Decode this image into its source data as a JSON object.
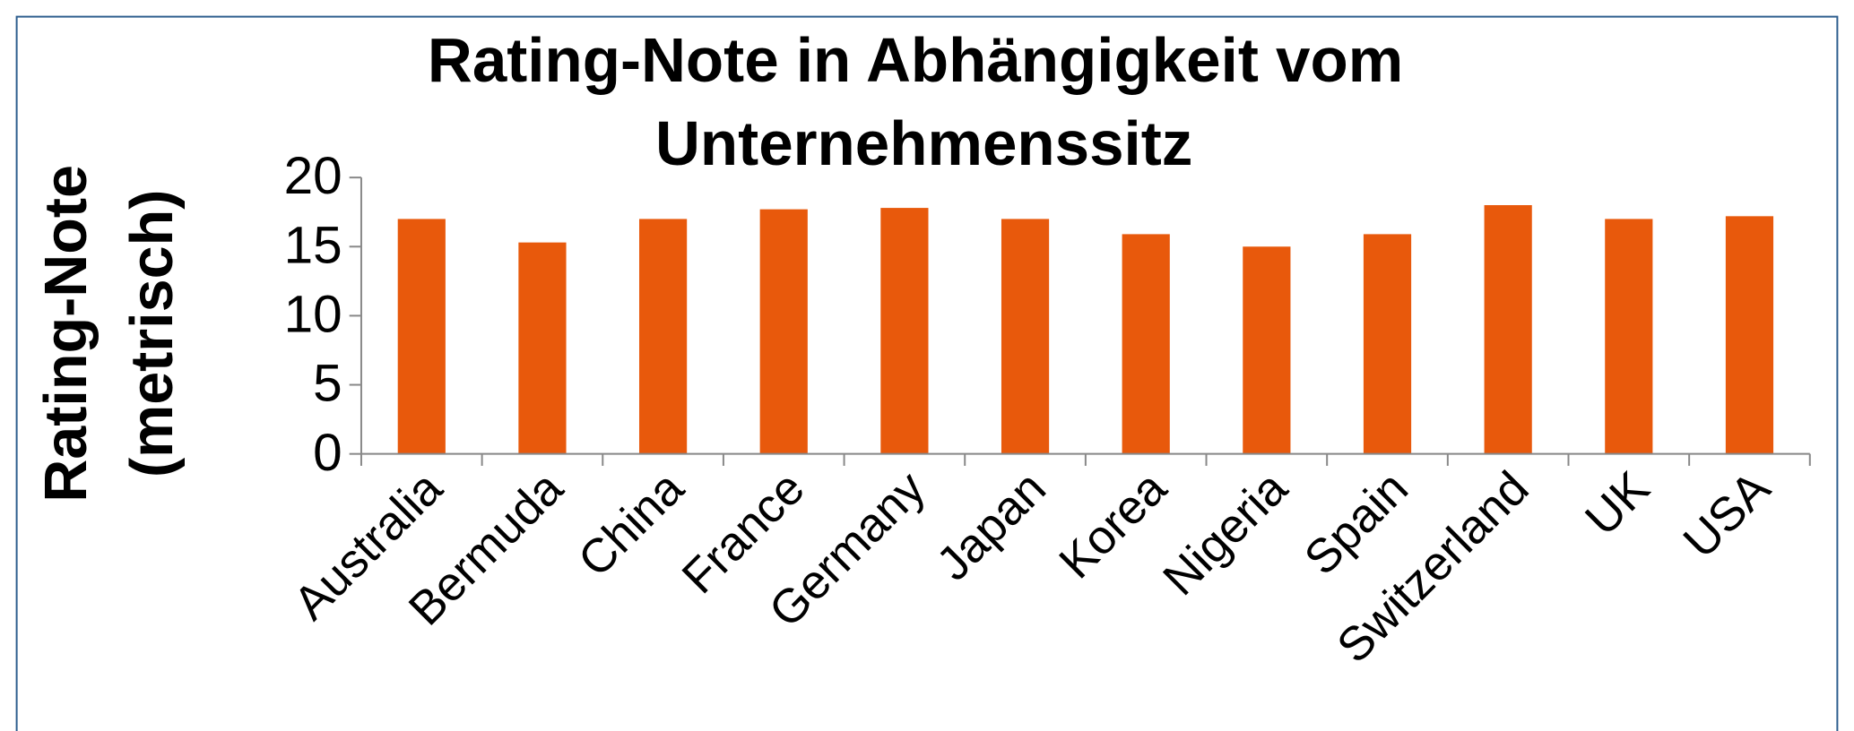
{
  "chart_data": {
    "type": "bar",
    "title": [
      "Rating-Note in Abhängigkeit vom",
      "Unternehmenssitz"
    ],
    "y_label": [
      "Rating-Note",
      "(metrisch)"
    ],
    "categories": [
      "Australia",
      "Bermuda",
      "China",
      "France",
      "Germany",
      "Japan",
      "Korea",
      "Nigeria",
      "Spain",
      "Switzerland",
      "UK",
      "USA"
    ],
    "values": [
      17.0,
      15.3,
      17.0,
      17.7,
      17.8,
      17.0,
      15.9,
      15.0,
      15.9,
      18.0,
      17.0,
      17.2
    ],
    "color": "#e8590c",
    "ylim": [
      0,
      20
    ],
    "yticks": [
      0,
      5,
      10,
      15,
      20
    ]
  }
}
